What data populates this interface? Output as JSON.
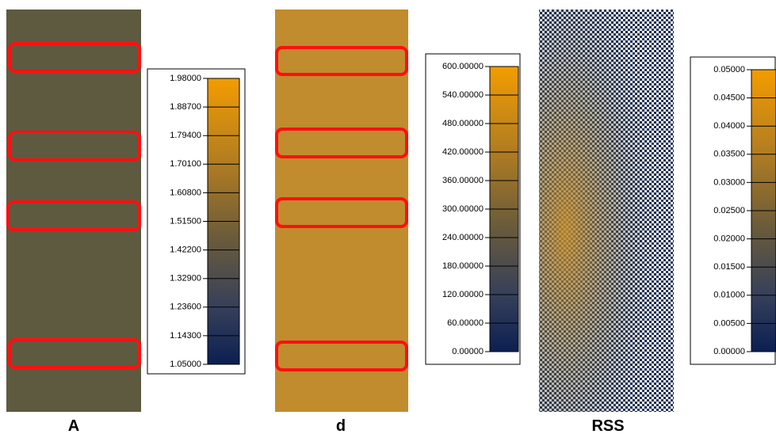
{
  "panels": [
    {
      "label": "A",
      "colorbar_ticks": [
        "1.98000",
        "1.88700",
        "1.79400",
        "1.70100",
        "1.60800",
        "1.51500",
        "1.42200",
        "1.32900",
        "1.23600",
        "1.14300",
        "1.05000"
      ]
    },
    {
      "label": "d",
      "colorbar_ticks": [
        "600.00000",
        "540.00000",
        "480.00000",
        "420.00000",
        "360.00000",
        "300.00000",
        "240.00000",
        "180.00000",
        "120.00000",
        "60.00000",
        "0.00000"
      ]
    },
    {
      "label": "RSS",
      "colorbar_ticks": [
        "0.05000",
        "0.04500",
        "0.04000",
        "0.03500",
        "0.03000",
        "0.02500",
        "0.02000",
        "0.01500",
        "0.01000",
        "0.00500",
        "0.00000"
      ]
    }
  ]
}
